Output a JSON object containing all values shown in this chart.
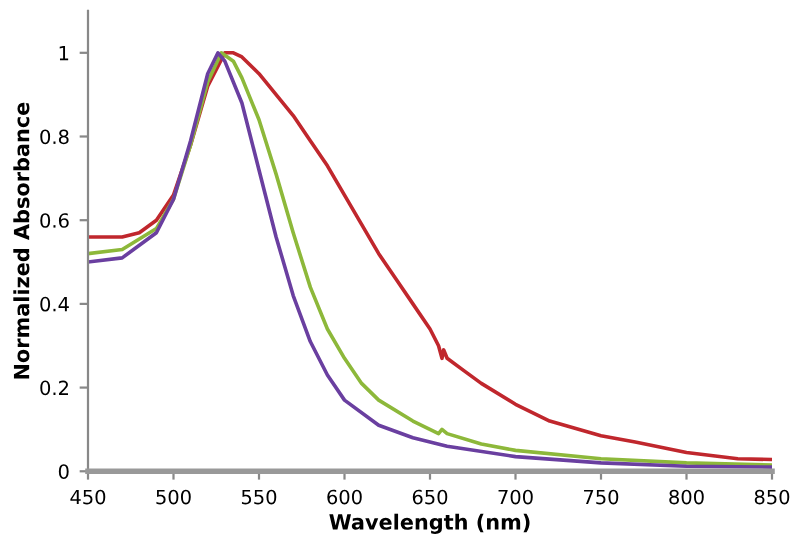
{
  "chart_data": {
    "type": "line",
    "xlabel": "Wavelength (nm)",
    "ylabel": "Normalized Absorbance",
    "xlim": [
      450,
      850
    ],
    "xticks": [
      450,
      500,
      550,
      600,
      650,
      700,
      750,
      800,
      850
    ],
    "ylim": [
      0,
      1.1
    ],
    "yticks": [
      0,
      0.2,
      0.4,
      0.6,
      0.8,
      1
    ],
    "grid": false,
    "marker": "none",
    "line_style": "solid",
    "series": [
      {
        "color": "#c0272d",
        "x": [
          450,
          470,
          480,
          490,
          500,
          510,
          520,
          530,
          535,
          540,
          550,
          560,
          570,
          580,
          590,
          600,
          610,
          620,
          630,
          640,
          650,
          655,
          657,
          658,
          660,
          670,
          680,
          700,
          720,
          750,
          770,
          800,
          830,
          850
        ],
        "values": [
          0.56,
          0.56,
          0.57,
          0.6,
          0.66,
          0.78,
          0.92,
          1.0,
          1.0,
          0.99,
          0.95,
          0.9,
          0.85,
          0.79,
          0.73,
          0.66,
          0.59,
          0.52,
          0.46,
          0.4,
          0.34,
          0.3,
          0.27,
          0.29,
          0.27,
          0.24,
          0.21,
          0.16,
          0.12,
          0.085,
          0.07,
          0.045,
          0.03,
          0.028
        ]
      },
      {
        "color": "#8db83a",
        "x": [
          450,
          470,
          490,
          500,
          510,
          520,
          528,
          535,
          540,
          550,
          560,
          570,
          580,
          590,
          600,
          610,
          620,
          640,
          655,
          657,
          660,
          680,
          700,
          750,
          800,
          850
        ],
        "values": [
          0.52,
          0.53,
          0.58,
          0.65,
          0.78,
          0.93,
          1.0,
          0.98,
          0.94,
          0.84,
          0.71,
          0.57,
          0.44,
          0.34,
          0.27,
          0.21,
          0.17,
          0.12,
          0.09,
          0.1,
          0.09,
          0.065,
          0.05,
          0.03,
          0.02,
          0.015
        ]
      },
      {
        "color": "#6a3fa0",
        "x": [
          450,
          470,
          490,
          500,
          510,
          520,
          526,
          530,
          540,
          550,
          560,
          570,
          580,
          590,
          600,
          620,
          640,
          660,
          700,
          750,
          800,
          850
        ],
        "values": [
          0.5,
          0.51,
          0.57,
          0.65,
          0.79,
          0.95,
          1.0,
          0.98,
          0.88,
          0.72,
          0.56,
          0.42,
          0.31,
          0.23,
          0.17,
          0.11,
          0.08,
          0.06,
          0.035,
          0.02,
          0.012,
          0.01
        ]
      }
    ]
  }
}
